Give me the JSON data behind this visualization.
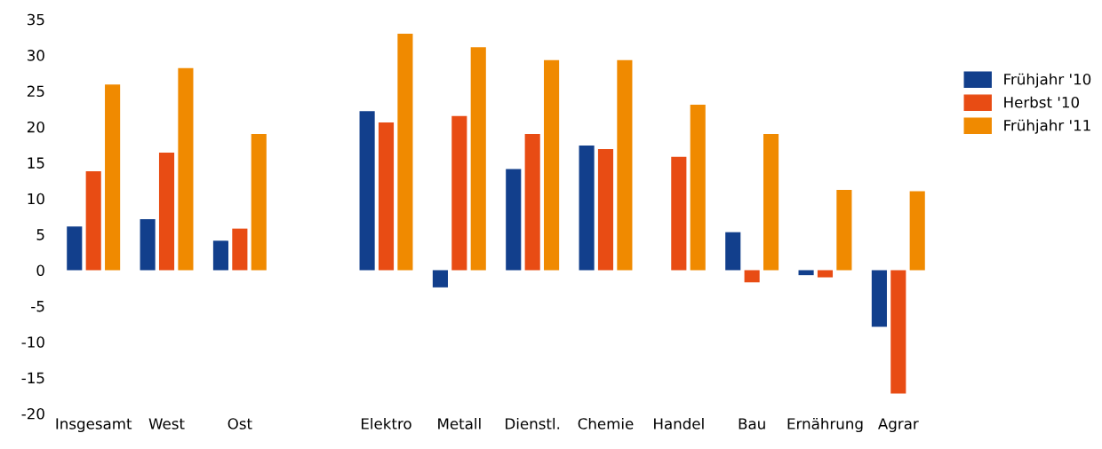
{
  "chart_data": {
    "type": "bar",
    "categories": [
      "Insgesamt",
      "West",
      "Ost",
      null,
      "Elektro",
      "Metall",
      "Dienstl.",
      "Chemie",
      "Handel",
      "Bau",
      "Ernährung",
      "Agrar"
    ],
    "series": [
      {
        "name": "Frühjahr '10",
        "color": "#123f8c",
        "values": [
          6.1,
          7.1,
          4.1,
          null,
          22.2,
          -2.4,
          14.1,
          17.4,
          null,
          5.3,
          -0.7,
          -7.9
        ]
      },
      {
        "name": "Herbst '10",
        "color": "#e84c14",
        "values": [
          13.8,
          16.4,
          5.8,
          null,
          20.6,
          21.5,
          19.0,
          16.9,
          15.8,
          -1.7,
          -1.0,
          -17.2
        ]
      },
      {
        "name": "Frühjahr '11",
        "color": "#f08a00",
        "values": [
          25.9,
          28.2,
          19.0,
          null,
          33.0,
          31.1,
          29.3,
          29.3,
          23.1,
          19.0,
          11.2,
          11.0
        ]
      }
    ],
    "ylim": [
      -20,
      35
    ],
    "yticks": [
      -20,
      -15,
      -10,
      -5,
      0,
      5,
      10,
      15,
      20,
      25,
      30,
      35
    ],
    "grid": false,
    "legend": "top right"
  }
}
